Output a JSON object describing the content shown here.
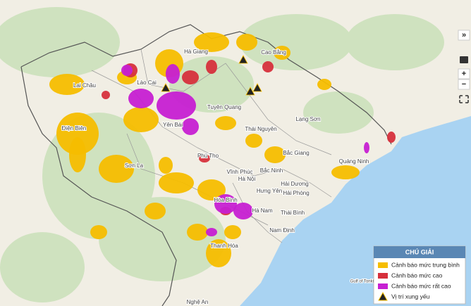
{
  "map": {
    "places": [
      "Lai Châu",
      "Hà Giang",
      "Cao Bằng",
      "Lào Cai",
      "Tuyên Quang",
      "Điện Biên",
      "Yên Bái",
      "Thái Nguyên",
      "Lạng Sơn",
      "Sơn La",
      "Phú Thọ",
      "Vĩnh Phúc",
      "Bắc Giang",
      "Bắc Ninh",
      "Quảng Ninh",
      "Hà Nội",
      "Hưng Yên",
      "Hải Dương",
      "Hải Phòng",
      "Hòa Bình",
      "Hà Nam",
      "Thái Bình",
      "Nam Định",
      "Thanh Hóa",
      "Nghệ An",
      "Gulf of Tonkin"
    ],
    "controls": [
      "»",
      "+",
      "−"
    ],
    "legend": {
      "title": "CHÚ GIẢI",
      "items": [
        {
          "label": "Cảnh báo mức trung bình",
          "color": "#f6bd00"
        },
        {
          "label": "Cảnh báo mức cao",
          "color": "#d6303c"
        },
        {
          "label": "Cảnh báo mức rất cao",
          "color": "#c61fd2"
        },
        {
          "label": "Vị trí xung yếu",
          "color": "#222222"
        }
      ]
    }
  }
}
